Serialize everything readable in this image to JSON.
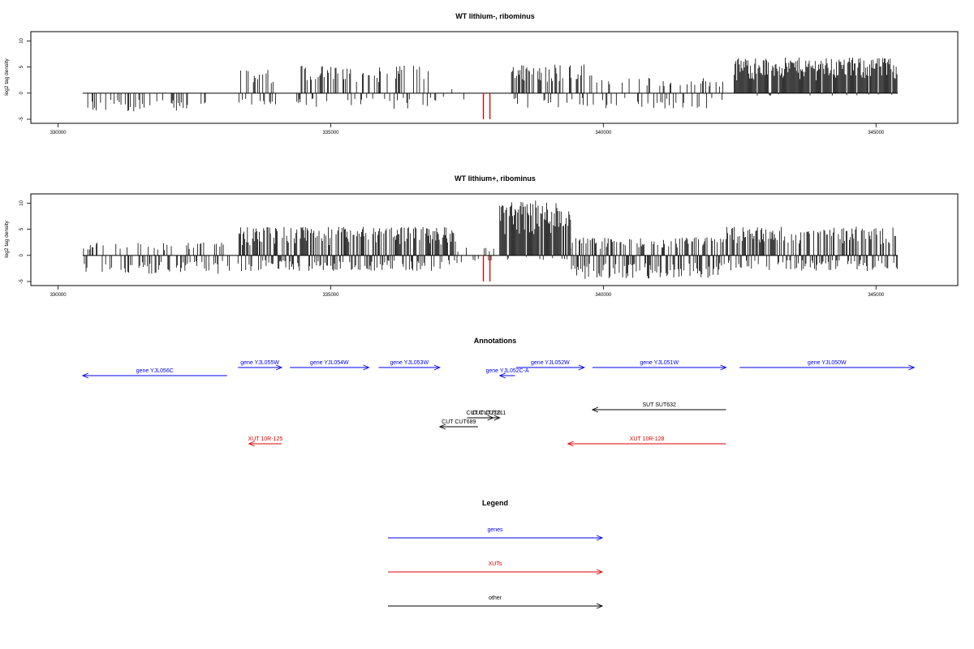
{
  "chart_data": [
    {
      "type": "bar",
      "title": "WT lithium-, ribominus",
      "ylabel": "log2 tag density",
      "xlim": [
        329500,
        346500
      ],
      "ylim": [
        -5,
        11
      ],
      "xticks": [
        330000,
        335000,
        340000,
        345000
      ],
      "xtick_labels": [
        "330000",
        "335000",
        "340000",
        "345000"
      ],
      "yticks": [
        -5,
        0,
        5,
        10
      ],
      "ytick_labels": [
        "-5",
        "0",
        "5",
        "10"
      ],
      "baseline": {
        "x": [
          330450,
          345400
        ],
        "y": 0
      },
      "signal_segments": [
        {
          "x_range": [
            330450,
            332800
          ],
          "min": -3.5,
          "max": 0,
          "density": 0.3
        },
        {
          "x_range": [
            333300,
            334000
          ],
          "min": -2.5,
          "max": 4.5,
          "density": 0.6
        },
        {
          "x_range": [
            334300,
            336800
          ],
          "min": -3,
          "max": 5.3,
          "density": 0.5
        },
        {
          "x_range": [
            336800,
            337600
          ],
          "min": -1.5,
          "max": 1.5,
          "density": 0.2
        },
        {
          "x_range": [
            338300,
            339800
          ],
          "min": -3,
          "max": 5.5,
          "density": 0.6
        },
        {
          "x_range": [
            339800,
            342200
          ],
          "min": -3,
          "max": 3,
          "density": 0.4
        },
        {
          "x_range": [
            342400,
            345400
          ],
          "min": -0.5,
          "max": 6.8,
          "density": 1.0
        }
      ],
      "highlight_lines": {
        "color": "#dd0000",
        "x": [
          337800,
          337920
        ],
        "y": [
          -5,
          0
        ]
      }
    },
    {
      "type": "bar",
      "title": "WT lithium+, ribominus",
      "ylabel": "log2 tag density",
      "xlim": [
        329500,
        346500
      ],
      "ylim": [
        -5,
        11
      ],
      "xticks": [
        330000,
        335000,
        340000,
        345000
      ],
      "xtick_labels": [
        "330000",
        "335000",
        "340000",
        "345000"
      ],
      "yticks": [
        -5,
        0,
        5,
        10
      ],
      "ytick_labels": [
        "-5",
        "0",
        "5",
        "10"
      ],
      "baseline": {
        "x": [
          330450,
          345400
        ],
        "y": 0
      },
      "signal_segments": [
        {
          "x_range": [
            330450,
            333200
          ],
          "min": -3.5,
          "max": 2.5,
          "density": 0.5
        },
        {
          "x_range": [
            333300,
            337300
          ],
          "min": -3,
          "max": 5.5,
          "density": 1.0
        },
        {
          "x_range": [
            337300,
            338000
          ],
          "min": -1.5,
          "max": 1.5,
          "density": 0.3
        },
        {
          "x_range": [
            338100,
            339400
          ],
          "min": -1,
          "max": 10.5,
          "density": 1.0
        },
        {
          "x_range": [
            339400,
            342200
          ],
          "min": -4.5,
          "max": 3.5,
          "density": 0.9
        },
        {
          "x_range": [
            342200,
            345400
          ],
          "min": -3,
          "max": 5.5,
          "density": 0.9
        }
      ],
      "highlight_lines": {
        "color": "#dd0000",
        "x": [
          337800,
          337920
        ],
        "y": [
          -5,
          0
        ]
      }
    }
  ],
  "annotations": {
    "title": "Annotations",
    "features": [
      {
        "label": "gene YJL056C",
        "color": "#0000ee",
        "x1": 333100,
        "x2": 330450,
        "row": 1
      },
      {
        "label": "gene YJL055W",
        "color": "#0000ee",
        "x1": 333300,
        "x2": 334100,
        "row": 0
      },
      {
        "label": "gene YJL054W",
        "color": "#0000ee",
        "x1": 334250,
        "x2": 335700,
        "row": 0
      },
      {
        "label": "gene YJL053W",
        "color": "#0000ee",
        "x1": 335880,
        "x2": 337000,
        "row": 0
      },
      {
        "label": "gene YJL052C-A",
        "color": "#0000ee",
        "x1": 338380,
        "x2": 338100,
        "row": 1
      },
      {
        "label": "gene YJL052W",
        "color": "#0000ee",
        "x1": 338400,
        "x2": 339650,
        "row": 0
      },
      {
        "label": "gene YJL051W",
        "color": "#0000ee",
        "x1": 339800,
        "x2": 342250,
        "row": 0
      },
      {
        "label": "gene YJL050W",
        "color": "#0000ee",
        "x1": 342500,
        "x2": 345700,
        "row": 0
      },
      {
        "label": "SUT SUT632",
        "color": "#000000",
        "x1": 342250,
        "x2": 339800,
        "row": 2
      },
      {
        "label": "CUT CUT210",
        "color": "#000000",
        "x1": 337500,
        "x2": 338100,
        "row": 3
      },
      {
        "label": "CUT CUT211",
        "color": "#000000",
        "x1": 337820,
        "x2": 337980,
        "row": 3
      },
      {
        "label": "CUT CUT689",
        "color": "#000000",
        "x1": 337700,
        "x2": 337000,
        "row": 4
      },
      {
        "label": "XUT 10R-125",
        "color": "#dd0000",
        "x1": 334100,
        "x2": 333500,
        "row": 5
      },
      {
        "label": "XUT 10R-128",
        "color": "#dd0000",
        "x1": 342250,
        "x2": 339350,
        "row": 5
      }
    ]
  },
  "legend": {
    "title": "Legend",
    "items": [
      {
        "label": "genes",
        "color": "#0000ee"
      },
      {
        "label": "XUTs",
        "color": "#dd0000"
      },
      {
        "label": "other",
        "color": "#000000"
      }
    ]
  }
}
